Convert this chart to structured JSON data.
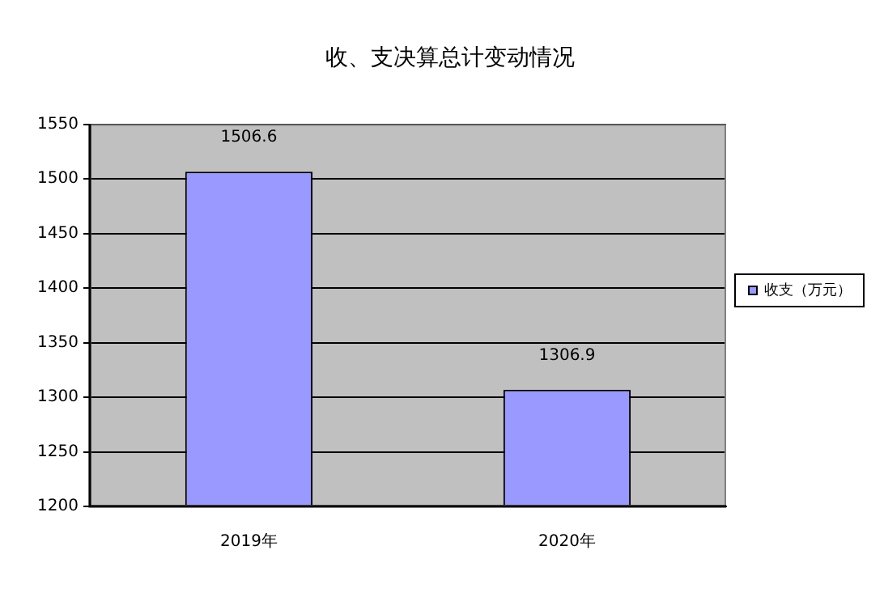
{
  "chart_data": {
    "type": "bar",
    "title": "收、支决算总计变动情况",
    "categories": [
      "2019年",
      "2020年"
    ],
    "series": [
      {
        "name": "收支（万元）",
        "color": "#9999ff",
        "values": [
          1506.6,
          1306.9
        ]
      }
    ],
    "ylim": [
      1200,
      1550
    ],
    "yticks": [
      1200,
      1250,
      1300,
      1350,
      1400,
      1450,
      1500,
      1550
    ],
    "grid": "y",
    "legend": "right",
    "data_labels": true
  }
}
